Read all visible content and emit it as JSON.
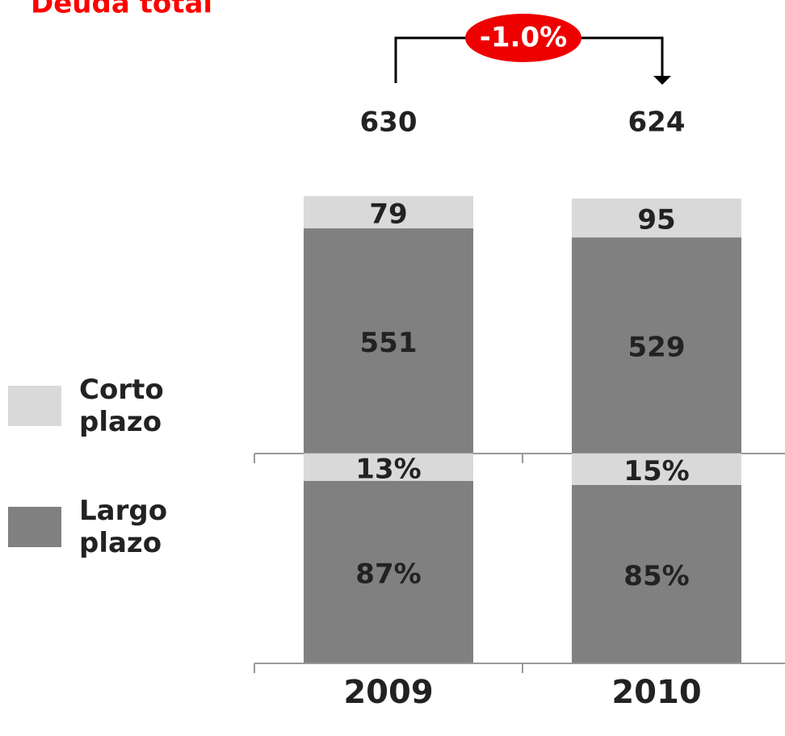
{
  "chart_data": [
    {
      "type": "bar",
      "stacked": true,
      "title": "Deuda total",
      "series": [
        {
          "name": "Largo plazo",
          "color": "#808080",
          "values": [
            551,
            529
          ]
        },
        {
          "name": "Corto plazo",
          "color": "#d9d9d9",
          "values": [
            79,
            95
          ]
        }
      ],
      "totals": [
        630,
        624
      ],
      "annotation": "-1.0%",
      "ylim": [
        0,
        630
      ]
    },
    {
      "type": "bar",
      "stacked": true,
      "categories": [
        "2009",
        "2010"
      ],
      "series": [
        {
          "color": "#808080",
          "values": [
            87,
            85
          ],
          "value_labels": [
            "87%",
            "85%"
          ]
        },
        {
          "color": "#d9d9d9",
          "values": [
            13,
            15
          ],
          "value_labels": [
            "13%",
            "15%"
          ]
        }
      ],
      "ylim": [
        0,
        100
      ]
    }
  ]
}
